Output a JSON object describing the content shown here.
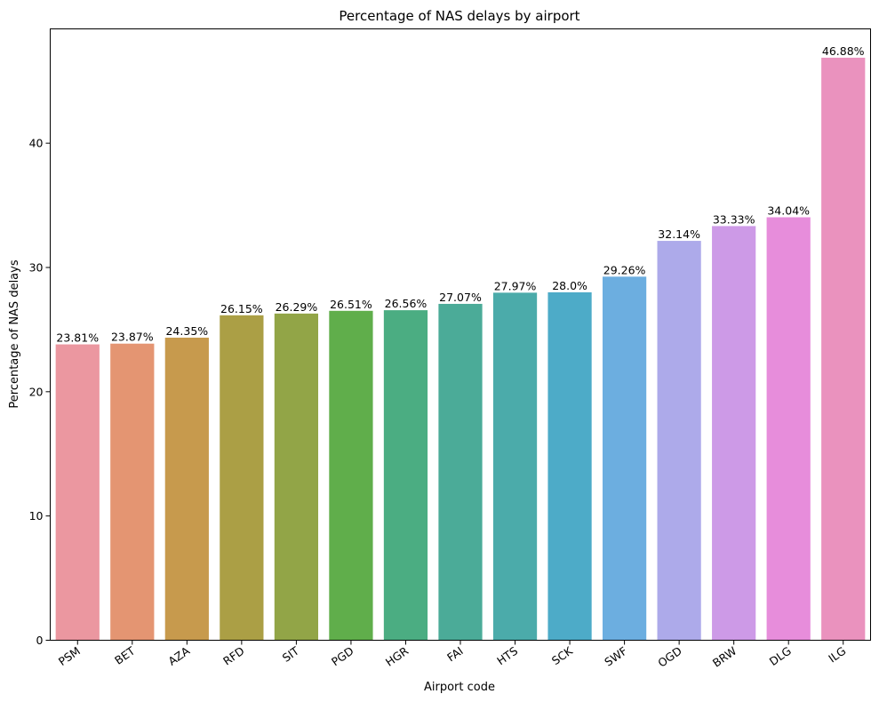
{
  "chart_data": {
    "type": "bar",
    "title": "Percentage of NAS delays by airport",
    "xlabel": "Airport code",
    "ylabel": "Percentage of NAS delays",
    "categories": [
      "PSM",
      "BET",
      "AZA",
      "RFD",
      "SIT",
      "PGD",
      "HGR",
      "FAI",
      "HTS",
      "SCK",
      "SWF",
      "OGD",
      "BRW",
      "DLG",
      "ILG"
    ],
    "values": [
      23.81,
      23.87,
      24.35,
      26.15,
      26.29,
      26.51,
      26.56,
      27.07,
      27.97,
      28.0,
      29.26,
      32.14,
      33.33,
      34.04,
      46.88
    ],
    "data_labels": [
      "23.81%",
      "23.87%",
      "24.35%",
      "26.15%",
      "26.29%",
      "26.51%",
      "26.56%",
      "27.07%",
      "27.97%",
      "28.0%",
      "29.26%",
      "32.14%",
      "33.33%",
      "34.04%",
      "46.88%"
    ],
    "colors": [
      "#eb97a0",
      "#e49572",
      "#c79a4d",
      "#ab9f45",
      "#92a547",
      "#60ae4b",
      "#4bad82",
      "#4bab98",
      "#4babaa",
      "#4dabc8",
      "#6caee0",
      "#adaaea",
      "#cd9ae7",
      "#e78ddb",
      "#ea92be"
    ],
    "yticks": [
      0,
      10,
      20,
      30,
      40
    ],
    "ylim": [
      0,
      49.2
    ],
    "grid": false,
    "legend": "none"
  }
}
